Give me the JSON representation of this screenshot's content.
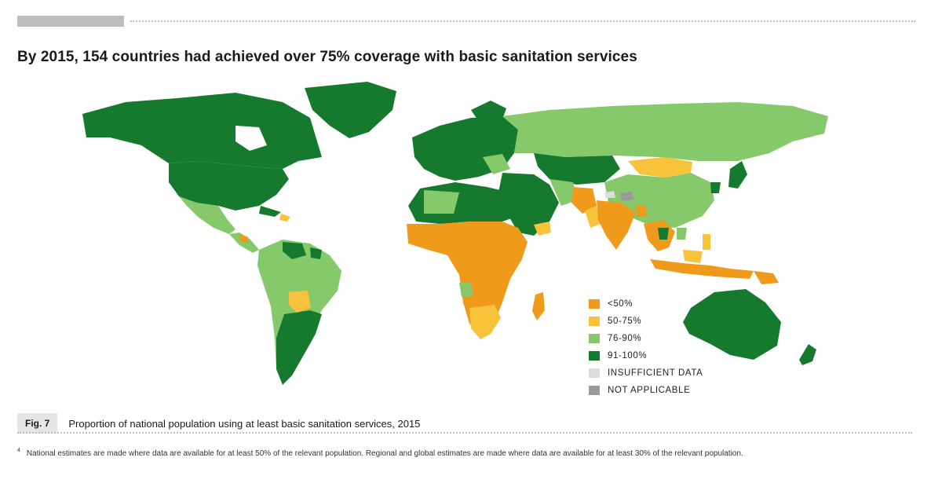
{
  "title": "By 2015, 154 countries had achieved over 75% coverage with basic sanitation services",
  "legend": [
    {
      "label": "<50%",
      "color": "#f09a1c"
    },
    {
      "label": "50-75%",
      "color": "#f6c33b"
    },
    {
      "label": "76-90%",
      "color": "#85c96b"
    },
    {
      "label": "91-100%",
      "color": "#167a2e"
    },
    {
      "label": "INSUFFICIENT DATA",
      "color": "#dcdcdc"
    },
    {
      "label": "NOT APPLICABLE",
      "color": "#9a9a9a"
    }
  ],
  "figure": {
    "label": "Fig. 7",
    "caption": "Proportion of national population using at least basic sanitation services, 2015"
  },
  "footnote": {
    "marker": "4",
    "text": "National estimates are made where data are available for at least 50% of the relevant population. Regional and global estimates are made where data are available for at least 30% of the relevant population."
  }
}
